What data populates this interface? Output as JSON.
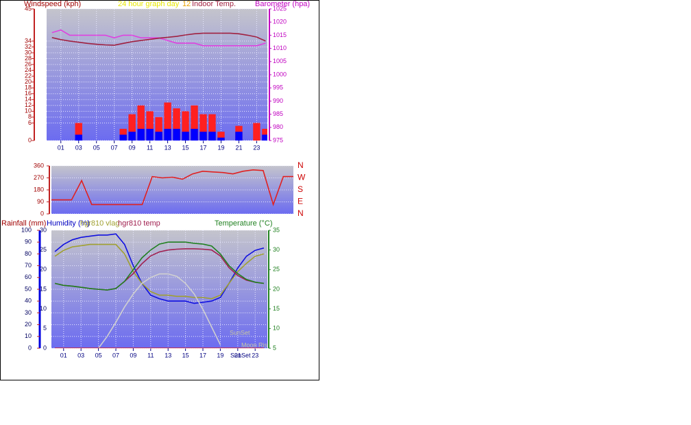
{
  "chart_data": [
    {
      "type": "bar",
      "title": "24 hour graph day",
      "subtitle": "12",
      "ylabel": "Windspeed (kph)",
      "y2label": "Barometer (hpa)",
      "x": [
        0,
        1,
        2,
        3,
        4,
        5,
        6,
        7,
        8,
        9,
        10,
        11,
        12,
        13,
        14,
        15,
        16,
        17,
        18,
        19,
        20,
        21,
        22,
        23,
        24
      ],
      "xlim": [
        -0.6,
        24.2
      ],
      "xticks": [
        {
          "value": 1,
          "label": "01"
        },
        {
          "value": 3,
          "label": "03"
        },
        {
          "value": 5,
          "label": "05"
        },
        {
          "value": 7,
          "label": "07"
        },
        {
          "value": 9,
          "label": "09"
        },
        {
          "value": 11,
          "label": "11"
        },
        {
          "value": 13,
          "label": "13"
        },
        {
          "value": 15,
          "label": "15"
        },
        {
          "value": 17,
          "label": "17"
        },
        {
          "value": 19,
          "label": "19"
        },
        {
          "value": 21,
          "label": "21"
        },
        {
          "value": 23,
          "label": "23"
        }
      ],
      "ylim": [
        0,
        45
      ],
      "yticks": [
        0,
        6,
        8,
        10,
        12,
        14,
        16,
        18,
        20,
        22,
        24,
        26,
        28,
        30,
        32,
        34,
        45
      ],
      "y2lim": [
        975,
        1025
      ],
      "y2ticks": [
        975,
        980,
        985,
        990,
        995,
        1000,
        1005,
        1010,
        1015,
        1020,
        1025
      ],
      "grid": true,
      "series": [
        {
          "type": "bar",
          "color": "#ff2020",
          "values": [
            0,
            0,
            0,
            6,
            0,
            0,
            0,
            0,
            4,
            9,
            12,
            10,
            8,
            13,
            11,
            10,
            12,
            9,
            9,
            3,
            0,
            5,
            0,
            6,
            4
          ]
        },
        {
          "type": "bar",
          "color": "#0000ff",
          "values": [
            0,
            0,
            0,
            2,
            0,
            0,
            0,
            0,
            2,
            3,
            4,
            4,
            3,
            4,
            4,
            3,
            4,
            3,
            3,
            1,
            0,
            3,
            0,
            0,
            2
          ]
        },
        {
          "type": "line",
          "axis": "y2",
          "color": "#e040e0",
          "values": [
            1016,
            1017,
            1015,
            1015,
            1015,
            1015,
            1015,
            1014,
            1015,
            1015,
            1014,
            1014,
            1014,
            1013,
            1012,
            1012,
            1012,
            1011,
            1011,
            1011,
            1011,
            1011,
            1011,
            1011,
            1012
          ]
        },
        {
          "name": "Indoor Temp.",
          "type": "line",
          "color": "#a02040",
          "values": [
            35.2,
            34.5,
            34,
            33.6,
            33.2,
            32.9,
            32.7,
            32.6,
            33.2,
            33.8,
            34.2,
            34.6,
            35,
            35.3,
            35.6,
            36.1,
            36.5,
            36.7,
            36.7,
            36.7,
            36.7,
            36.5,
            36,
            35.4,
            34
          ]
        }
      ]
    },
    {
      "type": "line",
      "x": [
        0,
        1,
        2,
        3,
        4,
        5,
        6,
        7,
        8,
        9,
        10,
        11,
        12,
        13,
        14,
        15,
        16,
        17,
        18,
        19,
        20,
        21,
        22,
        23,
        24
      ],
      "xlim": [
        0,
        24
      ],
      "ylim": [
        0,
        360
      ],
      "yticks": [
        0,
        90,
        180,
        270,
        360
      ],
      "y2lim": [
        0,
        360
      ],
      "y2ticks": [
        {
          "value": 0,
          "label": "N"
        },
        {
          "value": 90,
          "label": "E"
        },
        {
          "value": 180,
          "label": "S"
        },
        {
          "value": 270,
          "label": "W"
        },
        {
          "value": 360,
          "label": "N"
        }
      ],
      "grid": true,
      "series": [
        {
          "type": "line",
          "color": "#e02020",
          "values": [
            105,
            105,
            105,
            250,
            70,
            70,
            70,
            70,
            70,
            70,
            280,
            270,
            275,
            260,
            300,
            320,
            315,
            310,
            300,
            320,
            330,
            325,
            70,
            280,
            280
          ]
        }
      ]
    },
    {
      "type": "line",
      "ylabel": "Humidity (%)",
      "y3label": "Rainfall (mm)",
      "y2label": "Temperature (°C)",
      "annotations": [
        "SunSet",
        "Moon Rise",
        "SunSet"
      ],
      "x": [
        0,
        1,
        2,
        3,
        4,
        5,
        6,
        7,
        8,
        9,
        10,
        11,
        12,
        13,
        14,
        15,
        16,
        17,
        18,
        19,
        20,
        21,
        22,
        23,
        24
      ],
      "xlim": [
        -0.4,
        24.4
      ],
      "xticks": [
        {
          "value": 1,
          "label": "01"
        },
        {
          "value": 3,
          "label": "03"
        },
        {
          "value": 5,
          "label": "05"
        },
        {
          "value": 7,
          "label": "07"
        },
        {
          "value": 9,
          "label": "09"
        },
        {
          "value": 11,
          "label": "11"
        },
        {
          "value": 13,
          "label": "13"
        },
        {
          "value": 15,
          "label": "15"
        },
        {
          "value": 17,
          "label": "17"
        },
        {
          "value": 19,
          "label": "19"
        },
        {
          "value": 21,
          "label": "21"
        },
        {
          "value": 23,
          "label": "23"
        }
      ],
      "ylim": [
        0,
        100
      ],
      "yticks": [
        0,
        10,
        20,
        30,
        40,
        50,
        60,
        70,
        80,
        90,
        100
      ],
      "y3lim": [
        0,
        30
      ],
      "y3ticks": [
        0,
        5,
        10,
        15,
        20,
        25,
        30
      ],
      "y2lim": [
        5,
        35
      ],
      "y2ticks": [
        5,
        10,
        15,
        20,
        25,
        30,
        35
      ],
      "grid": true,
      "series": [
        {
          "type": "line",
          "color": "#1010e0",
          "values": [
            82,
            88,
            92,
            94,
            95,
            96,
            96,
            97,
            88,
            70,
            55,
            45,
            42,
            40,
            40,
            40,
            38,
            39,
            40,
            43,
            55,
            68,
            78,
            83,
            85
          ]
        },
        {
          "name": "hgr810 vlag",
          "type": "line",
          "color": "#a0a030",
          "values": [
            78,
            83,
            86,
            87,
            88,
            88,
            88,
            88,
            80,
            65,
            55,
            48,
            45,
            45,
            44,
            44,
            43,
            43,
            42,
            45,
            55,
            65,
            72,
            78,
            80
          ]
        },
        {
          "name": "hgr810 temp",
          "type": "line",
          "axis": "y2",
          "color": "#a02050",
          "values": [
            21.5,
            21,
            20.8,
            20.5,
            20.2,
            20,
            19.8,
            20.2,
            22,
            24,
            26.5,
            28.5,
            29.5,
            30,
            30.2,
            30.3,
            30.3,
            30.2,
            30,
            28.5,
            25.5,
            23.5,
            22.3,
            21.8,
            21.5
          ]
        },
        {
          "type": "line",
          "axis": "y2",
          "color": "#208020",
          "values": [
            21.5,
            21,
            20.8,
            20.5,
            20.2,
            20,
            19.8,
            20.2,
            22,
            25,
            28,
            30,
            31.5,
            32,
            32,
            32,
            31.7,
            31.5,
            31,
            29,
            26,
            24,
            22.5,
            21.8,
            21.5
          ]
        },
        {
          "type": "line",
          "color": "#d0d0d0",
          "values": [
            null,
            null,
            null,
            null,
            null,
            0,
            10,
            22,
            35,
            46,
            55,
            60,
            63,
            63,
            61,
            55,
            46,
            33,
            18,
            3,
            null,
            null,
            null,
            null,
            null
          ]
        },
        {
          "type": "line",
          "axis": "y3",
          "color": "#e02020",
          "values": [
            0,
            0,
            0,
            0,
            0,
            0,
            0,
            0,
            0,
            0,
            0,
            0,
            0,
            0,
            0,
            0,
            0,
            0,
            0,
            0,
            0,
            0,
            0,
            0,
            0
          ]
        }
      ]
    }
  ]
}
